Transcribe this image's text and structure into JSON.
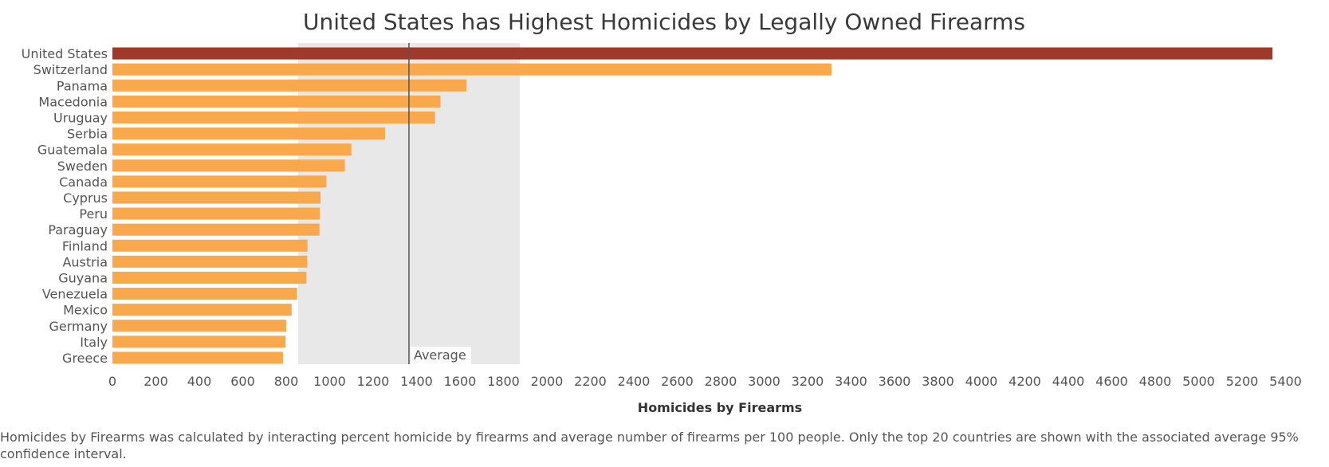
{
  "chart_data": {
    "type": "bar",
    "orientation": "horizontal",
    "title": "United States has Highest Homicides by Legally Owned Firearms",
    "xlabel": "Homicides by Firearms",
    "ylabel": "",
    "xlim": [
      0,
      5600
    ],
    "ticks": [
      0,
      200,
      400,
      600,
      800,
      1000,
      1200,
      1400,
      1600,
      1800,
      2000,
      2200,
      2400,
      2600,
      2800,
      3000,
      3200,
      3400,
      3600,
      3800,
      4000,
      4200,
      4400,
      4600,
      4800,
      5000,
      5200,
      5400
    ],
    "grid": false,
    "categories": [
      "United States",
      "Switzerland",
      "Panama",
      "Macedonia",
      "Uruguay",
      "Serbia",
      "Guatemala",
      "Sweden",
      "Canada",
      "Cyprus",
      "Peru",
      "Paraguay",
      "Finland",
      "Austria",
      "Guyana",
      "Venezuela",
      "Mexico",
      "Germany",
      "Italy",
      "Greece"
    ],
    "values": [
      5340,
      3310,
      1630,
      1510,
      1485,
      1255,
      1100,
      1070,
      985,
      958,
      955,
      953,
      898,
      897,
      893,
      850,
      825,
      800,
      797,
      785
    ],
    "highlight": [
      "United States"
    ],
    "reference_line": {
      "label": "Average",
      "value": 1365
    },
    "confidence_band": {
      "label": "95% confidence interval",
      "range": [
        855,
        1875
      ]
    },
    "colors": {
      "highlight": "#a0392a",
      "bar": "#f9a94b",
      "band": "#e8e8e8",
      "reference_line": "#555555"
    }
  },
  "footnote": "Homicides by Firearms was calculated by interacting percent homicide by firearms and average number of firearms per 100 people. Only the top 20 countries are shown with the associated average 95% confidence interval."
}
